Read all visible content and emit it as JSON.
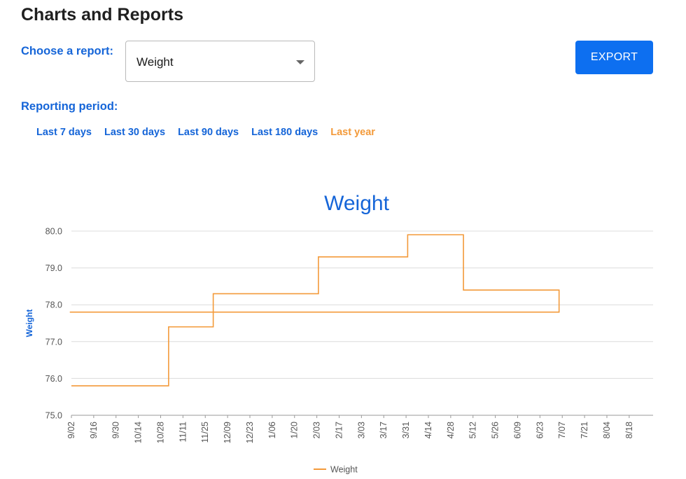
{
  "page": {
    "title": "Charts and Reports"
  },
  "report": {
    "label": "Choose a report:",
    "selected": "Weight",
    "caret_icon": "chevron-down-icon"
  },
  "toolbar": {
    "export_label": "EXPORT"
  },
  "period": {
    "label": "Reporting period:",
    "options": [
      "Last 7 days",
      "Last 30 days",
      "Last 90 days",
      "Last 180 days",
      "Last year"
    ],
    "active_index": 4
  },
  "colors": {
    "accent": "#1565d8",
    "button": "#0d6ff0",
    "series": "#f39a3a",
    "active_period": "#f39a3a"
  },
  "chart_data": {
    "type": "line",
    "title": "Weight",
    "xlabel": "",
    "ylabel": "Weight",
    "ylim": [
      75.0,
      80.0
    ],
    "yticks": [
      "75.0",
      "76.0",
      "77.0",
      "78.0",
      "79.0",
      "80.0"
    ],
    "xticks": [
      "9/02",
      "9/16",
      "9/30",
      "10/14",
      "10/28",
      "11/11",
      "11/25",
      "12/09",
      "12/23",
      "1/06",
      "1/20",
      "2/03",
      "2/17",
      "3/03",
      "3/17",
      "3/31",
      "4/14",
      "4/28",
      "5/12",
      "5/26",
      "6/09",
      "6/23",
      "7/07",
      "7/21",
      "8/04",
      "8/18"
    ],
    "grid": true,
    "legend": "bottom",
    "step": true,
    "series": [
      {
        "name": "Weight",
        "color": "#f39a3a",
        "points": [
          {
            "x": "9/02",
            "y": 75.8
          },
          {
            "x": "11/02",
            "y": 77.4
          },
          {
            "x": "11/30",
            "y": 78.3
          },
          {
            "x": "2/04",
            "y": 79.3
          },
          {
            "x": "4/01",
            "y": 79.9
          },
          {
            "x": "5/06",
            "y": 78.4
          },
          {
            "x": "7/05",
            "y": 77.8
          },
          {
            "x": "9/01",
            "y": 77.8
          }
        ]
      }
    ]
  }
}
